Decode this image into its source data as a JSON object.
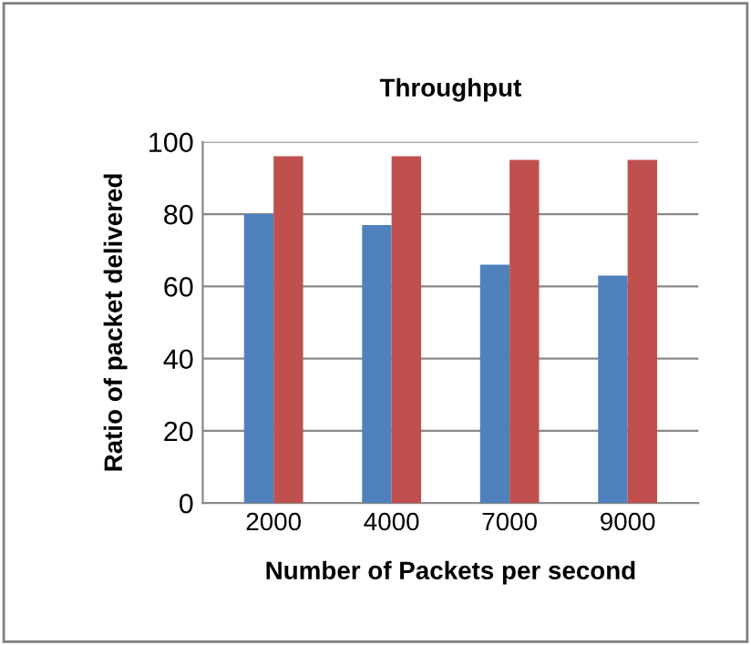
{
  "chart_data": {
    "type": "bar",
    "title": "Throughput",
    "xlabel": "Number of Packets per second",
    "ylabel": "Ratio of packet delivered",
    "categories": [
      "2000",
      "4000",
      "7000",
      "9000"
    ],
    "series": [
      {
        "color": "#4f81bd",
        "values": [
          80,
          77,
          66,
          63
        ]
      },
      {
        "color": "#c0504d",
        "values": [
          96,
          96,
          95,
          95
        ]
      }
    ],
    "ylim": [
      0,
      100
    ],
    "yticks": [
      0,
      20,
      40,
      60,
      80,
      100
    ],
    "grid": "y",
    "legend": false
  }
}
